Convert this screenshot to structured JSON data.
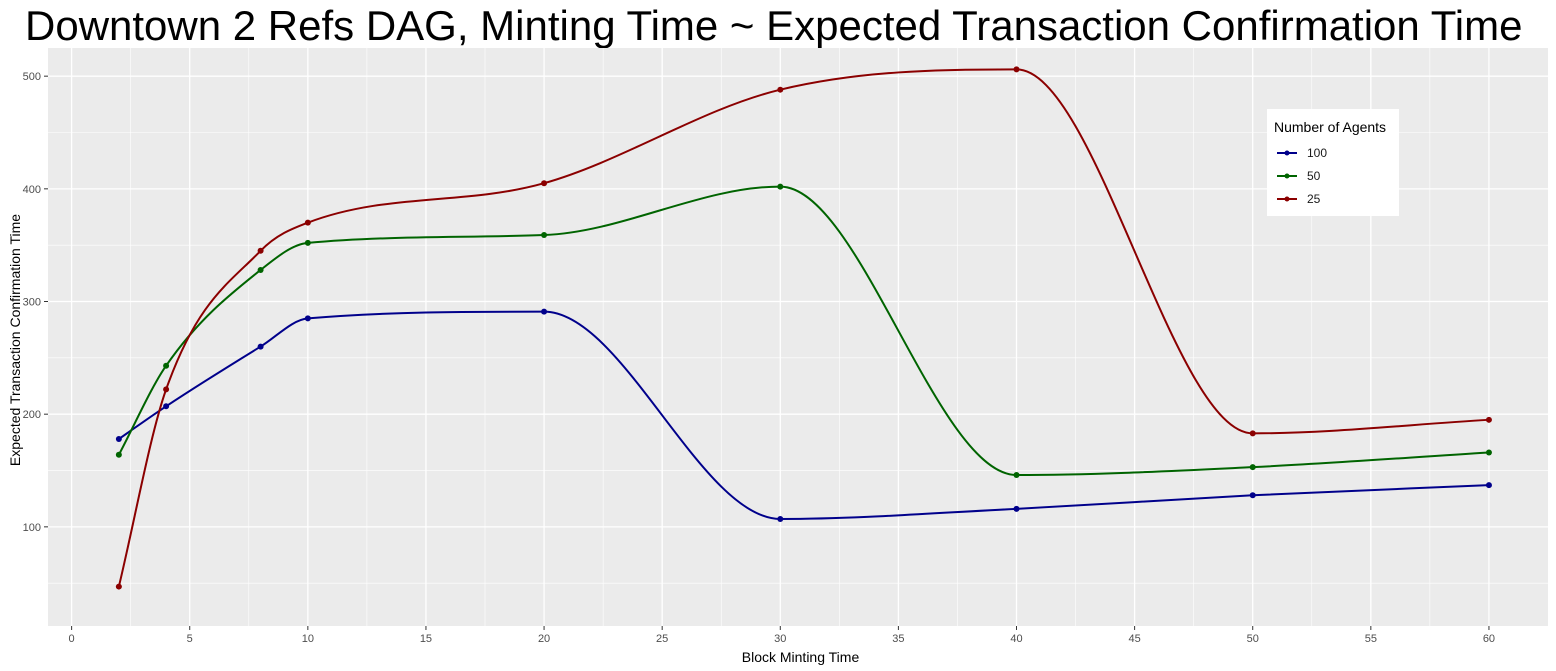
{
  "chart_data": {
    "type": "line",
    "title": "Downtown 2 Refs DAG,  Minting Time ~ Expected Transaction Confirmation Time",
    "xlabel": "Block Minting Time",
    "ylabel": "Expected Transaction Confirmation Time",
    "xlim": [
      -1,
      62.5
    ],
    "ylim": [
      12,
      525
    ],
    "x_ticks": [
      0,
      5,
      10,
      15,
      20,
      25,
      30,
      35,
      40,
      45,
      50,
      55,
      60
    ],
    "y_ticks": [
      100,
      200,
      300,
      400,
      500
    ],
    "grid": true,
    "legend_position": "top-right",
    "legend_title": "Number of Agents",
    "x": [
      2,
      4,
      8,
      10,
      20,
      30,
      40,
      50,
      60
    ],
    "series": [
      {
        "name": "100",
        "color": "#00008B",
        "values": [
          178,
          207,
          260,
          285,
          291,
          107,
          116,
          128,
          137
        ]
      },
      {
        "name": "50",
        "color": "#006400",
        "values": [
          164,
          243,
          328,
          352,
          359,
          402,
          146,
          153,
          166
        ]
      },
      {
        "name": "25",
        "color": "#8B0000",
        "values": [
          47,
          222,
          345,
          370,
          405,
          488,
          506,
          183,
          195
        ]
      }
    ]
  }
}
